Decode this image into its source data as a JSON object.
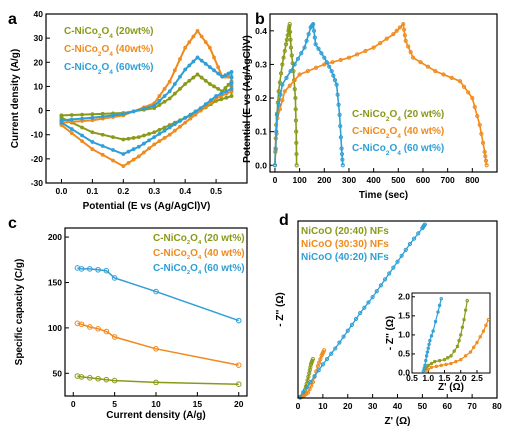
{
  "colors": {
    "olive": "#8a9a18",
    "orange": "#f08a1c",
    "blue": "#2f9fd5"
  },
  "panels": {
    "a": "a",
    "b": "b",
    "c": "c",
    "d": "d"
  },
  "chart_data": [
    {
      "panel": "a",
      "type": "line",
      "xlabel": "Potential (E vs (Ag/AgCl)V)",
      "ylabel": "Current density (A/g)",
      "xlim": [
        -0.05,
        0.6
      ],
      "ylim": [
        -30,
        40
      ],
      "xticks": [
        "0.0",
        "0.1",
        "0.2",
        "0.3",
        "0.4",
        "0.5"
      ],
      "yticks": [
        "-30",
        "-20",
        "-10",
        "0",
        "10",
        "20",
        "30",
        "40"
      ],
      "legend_position": "top-left",
      "series": [
        {
          "name": "C-NiCo2O4 (20wt%)",
          "color": "#8a9a18",
          "anodic": {
            "x": [
              0.0,
              0.1,
              0.2,
              0.3,
              0.35,
              0.4,
              0.44,
              0.48,
              0.52,
              0.55
            ],
            "y": [
              -2,
              -1.5,
              -1,
              1,
              5,
              11,
              15,
              11,
              8,
              12
            ]
          },
          "cathodic": {
            "x": [
              0.55,
              0.5,
              0.45,
              0.4,
              0.35,
              0.3,
              0.25,
              0.2,
              0.1,
              0.0
            ],
            "y": [
              6,
              4,
              0,
              -3,
              -6,
              -9,
              -11,
              -12,
              -9,
              -3
            ]
          }
        },
        {
          "name": "C-NiCo2O4 (40wt%)",
          "color": "#f08a1c",
          "anodic": {
            "x": [
              0.0,
              0.1,
              0.2,
              0.3,
              0.35,
              0.4,
              0.44,
              0.48,
              0.52,
              0.55
            ],
            "y": [
              -5,
              -4,
              -2,
              3,
              12,
              26,
              33,
              26,
              14,
              14
            ]
          },
          "cathodic": {
            "x": [
              0.55,
              0.5,
              0.45,
              0.4,
              0.35,
              0.3,
              0.25,
              0.2,
              0.1,
              0.0
            ],
            "y": [
              8,
              5,
              0,
              -5,
              -10,
              -14,
              -19,
              -23,
              -16,
              -6
            ]
          }
        },
        {
          "name": "C-NiCo2O4 (60wt%)",
          "color": "#2f9fd5",
          "anodic": {
            "x": [
              0.0,
              0.1,
              0.2,
              0.3,
              0.35,
              0.4,
              0.44,
              0.48,
              0.52,
              0.55
            ],
            "y": [
              -4,
              -3,
              -1.5,
              2,
              8,
              17,
              22,
              18,
              14,
              16
            ]
          },
          "cathodic": {
            "x": [
              0.55,
              0.5,
              0.45,
              0.4,
              0.35,
              0.3,
              0.25,
              0.2,
              0.1,
              0.0
            ],
            "y": [
              9,
              6,
              1,
              -3,
              -7,
              -11,
              -15,
              -18,
              -13,
              -5
            ]
          }
        }
      ]
    },
    {
      "panel": "b",
      "type": "line",
      "xlabel": "Time (sec)",
      "ylabel": "Potential (E vs (Ag/AgCl)V)",
      "xlim": [
        -20,
        900
      ],
      "ylim": [
        -0.02,
        0.45
      ],
      "xticks": [
        "0",
        "100",
        "200",
        "300",
        "400",
        "500",
        "600",
        "700",
        "800"
      ],
      "yticks": [
        "0.0",
        "0.1",
        "0.2",
        "0.3",
        "0.4"
      ],
      "legend_position": "bottom-right",
      "series": [
        {
          "name": "C-NiCo2O4 (20 wt%)",
          "color": "#8a9a18",
          "x": [
            0,
            5,
            15,
            30,
            45,
            55,
            60,
            65,
            75,
            83,
            86,
            88
          ],
          "y": [
            0.0,
            0.12,
            0.22,
            0.3,
            0.36,
            0.4,
            0.42,
            0.35,
            0.28,
            0.2,
            0.1,
            0.0
          ]
        },
        {
          "name": "C-NiCo2O4 (40 wt%)",
          "color": "#f08a1c",
          "x": [
            0,
            10,
            40,
            100,
            200,
            300,
            400,
            480,
            520,
            530,
            560,
            650,
            750,
            800,
            830,
            850,
            858
          ],
          "y": [
            0.0,
            0.14,
            0.22,
            0.27,
            0.3,
            0.32,
            0.35,
            0.39,
            0.42,
            0.37,
            0.32,
            0.28,
            0.25,
            0.2,
            0.12,
            0.04,
            0.0
          ]
        },
        {
          "name": "C-NiCo2O4 (60 wt%)",
          "color": "#2f9fd5",
          "x": [
            0,
            8,
            30,
            80,
            120,
            145,
            155,
            165,
            200,
            230,
            250,
            262,
            270,
            275
          ],
          "y": [
            0.0,
            0.15,
            0.24,
            0.3,
            0.35,
            0.41,
            0.42,
            0.36,
            0.32,
            0.28,
            0.24,
            0.15,
            0.05,
            0.0
          ]
        }
      ]
    },
    {
      "panel": "c",
      "type": "line",
      "xlabel": "Current density (A/g)",
      "ylabel": "Specific capacity (C/g)",
      "xlim": [
        -1,
        21
      ],
      "ylim": [
        25,
        210
      ],
      "xticks": [
        "0",
        "5",
        "10",
        "15",
        "20"
      ],
      "yticks": [
        "50",
        "100",
        "150",
        "200"
      ],
      "legend_position": "top-right",
      "series": [
        {
          "name": "C-NiCo2O4 (20 wt%)",
          "color": "#8a9a18",
          "x": [
            0.5,
            1,
            2,
            3,
            4,
            5,
            10,
            20
          ],
          "y": [
            47,
            46,
            45,
            44,
            43,
            42,
            40,
            38
          ]
        },
        {
          "name": "C-NiCo2O4 (40 wt%)",
          "color": "#f08a1c",
          "x": [
            0.5,
            1,
            2,
            3,
            4,
            5,
            10,
            20
          ],
          "y": [
            105,
            104,
            101,
            99,
            96,
            90,
            77,
            59
          ]
        },
        {
          "name": "C-NiCo2O4 (60 wt%)",
          "color": "#2f9fd5",
          "x": [
            0.5,
            1,
            2,
            3,
            4,
            5,
            10,
            20
          ],
          "y": [
            166,
            165,
            165,
            164,
            163,
            155,
            140,
            108
          ]
        }
      ]
    },
    {
      "panel": "d",
      "type": "scatter",
      "xlabel": "Z' (Ω)",
      "ylabel": "- Z'' (Ω)",
      "xlim": [
        0,
        80
      ],
      "ylim": [
        0,
        100
      ],
      "xticks": [
        "0",
        "10",
        "20",
        "30",
        "40",
        "50",
        "60",
        "70",
        "80"
      ],
      "legend_position": "top-left",
      "series": [
        {
          "name": "NiCoO (20:40) NFs",
          "color": "#8a9a18",
          "x": [
            0.9,
            1.5,
            2.5,
            3.5,
            4.5,
            5.2,
            6
          ],
          "y": [
            0.2,
            1,
            3,
            8,
            14,
            19,
            22
          ]
        },
        {
          "name": "NiCoO (30:30) NFs",
          "color": "#f08a1c",
          "x": [
            0.9,
            2,
            4,
            6,
            8,
            9.5,
            10.5
          ],
          "y": [
            0.3,
            1,
            3,
            9,
            18,
            24,
            27
          ]
        },
        {
          "name": "NiCoO (40:20) NFs",
          "color": "#2f9fd5",
          "x": [
            0.7,
            5,
            10,
            15,
            20,
            25,
            30,
            35,
            40,
            45,
            50,
            51
          ],
          "y": [
            0.5,
            9,
            19,
            28,
            38,
            48,
            57,
            67,
            77,
            87,
            96,
            98
          ]
        }
      ],
      "inset": {
        "xlabel": "Z' (Ω)",
        "ylabel": "- Z'' (Ω)",
        "xlim": [
          0.5,
          2.9
        ],
        "ylim": [
          0.0,
          2.1
        ],
        "xticks": [
          "0.5",
          "1.0",
          "1.5",
          "2.0",
          "2.5"
        ],
        "yticks": [
          "0.0",
          "0.5",
          "1.0",
          "1.5",
          "2.0"
        ],
        "series": [
          {
            "name": "NiCoO (20:40) NFs",
            "color": "#8a9a18",
            "x": [
              0.9,
              1.0,
              1.2,
              1.5,
              1.7,
              1.9,
              2.0,
              2.1,
              2.2
            ],
            "y": [
              0.05,
              0.2,
              0.3,
              0.35,
              0.45,
              0.7,
              1.0,
              1.4,
              1.9
            ]
          },
          {
            "name": "NiCoO (30:30) NFs",
            "color": "#f08a1c",
            "x": [
              0.9,
              1.1,
              1.4,
              1.7,
              2.0,
              2.3,
              2.5,
              2.7,
              2.85
            ],
            "y": [
              0.05,
              0.15,
              0.2,
              0.25,
              0.35,
              0.55,
              0.8,
              1.1,
              1.4
            ]
          },
          {
            "name": "NiCoO (40:20) NFs",
            "color": "#2f9fd5",
            "x": [
              0.85,
              0.9,
              0.95,
              1.0,
              1.05,
              1.15,
              1.3,
              1.4
            ],
            "y": [
              0.05,
              0.2,
              0.45,
              0.65,
              0.85,
              1.1,
              1.6,
              1.95
            ]
          }
        ]
      }
    }
  ]
}
